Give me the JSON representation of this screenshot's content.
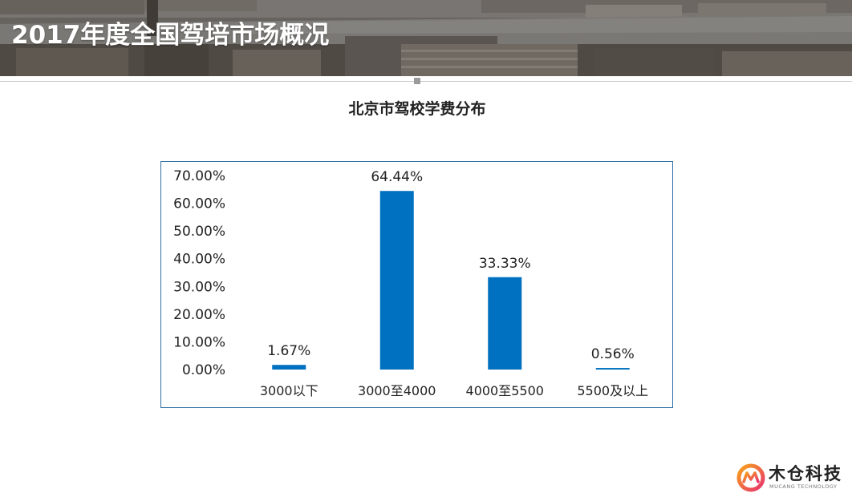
{
  "header": {
    "title": "2017年度全国驾培市场概况"
  },
  "chart_data": {
    "type": "bar",
    "title": "北京市驾校学费分布",
    "categories": [
      "3000以下",
      "3000至4000",
      "4000至5500",
      "5500及以上"
    ],
    "values": [
      1.67,
      64.44,
      33.33,
      0.56
    ],
    "value_labels": [
      "1.67%",
      "64.44%",
      "33.33%",
      "0.56%"
    ],
    "y_ticks": [
      "0.00%",
      "10.00%",
      "20.00%",
      "30.00%",
      "40.00%",
      "50.00%",
      "60.00%",
      "70.00%"
    ],
    "ylim": [
      0,
      70
    ],
    "grid": false,
    "legend": "none",
    "xlabel": "",
    "ylabel": "",
    "bar_color": "#0070c0"
  },
  "logo": {
    "name": "木仓科技",
    "subtitle": "MUCANG TECHNOLOGY",
    "colors": [
      "#e8336d",
      "#f7a21b"
    ]
  }
}
